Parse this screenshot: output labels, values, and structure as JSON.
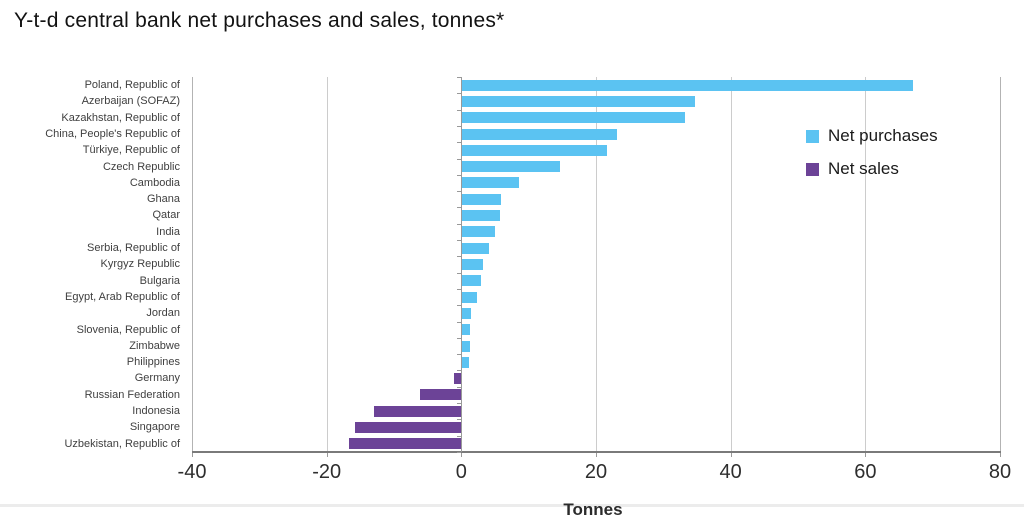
{
  "page": {
    "background": "#ffffff"
  },
  "chart_data": {
    "type": "bar",
    "orientation": "horizontal",
    "title": "Y-t-d central bank net purchases and sales, tonnes*",
    "xlabel": "Tonnes",
    "units": "tonnes",
    "xlim": [
      -40,
      80
    ],
    "xticks": [
      -40,
      -20,
      0,
      20,
      40,
      60,
      80
    ],
    "grid": "vertical-gridlines-at-xticks",
    "legend_position": "top-right-inside",
    "categories": [
      "Poland, Republic of",
      "Azerbaijan (SOFAZ)",
      "Kazakhstan, Republic of",
      "China, People's Republic of",
      "Türkiye, Republic of",
      "Czech Republic",
      "Cambodia",
      "Ghana",
      "Qatar",
      "India",
      "Serbia, Republic of",
      "Kyrgyz Republic",
      "Bulgaria",
      "Egypt, Arab Republic of",
      "Jordan",
      "Slovenia, Republic of",
      "Zimbabwe",
      "Philippines",
      "Germany",
      "Russian Federation",
      "Indonesia",
      "Singapore",
      "Uzbekistan, Republic of"
    ],
    "values": [
      67,
      34.5,
      33,
      23,
      21.5,
      14.5,
      8.4,
      5.8,
      5.6,
      4.8,
      4,
      3,
      2.7,
      2.2,
      1.3,
      1.2,
      1.1,
      1,
      -1.1,
      -6.2,
      -13,
      -15.8,
      -16.7
    ],
    "series": [
      {
        "name": "Net purchases",
        "color": "#5BC3F2",
        "applies_to": "values >= 0"
      },
      {
        "name": "Net sales",
        "color": "#6C4397",
        "applies_to": "values < 0"
      }
    ]
  }
}
